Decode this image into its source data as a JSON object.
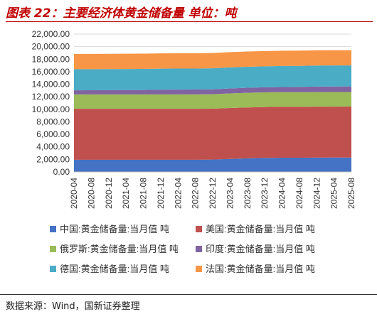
{
  "title": "图表 22：主要经济体黄金储备量 单位：吨",
  "source": "数据来源：Wind，国新证券整理",
  "chart_data": {
    "type": "area",
    "stacked": true,
    "ylim": [
      0,
      22000
    ],
    "yticks": [
      "0.00",
      "2,000.00",
      "4,000.00",
      "6,000.00",
      "8,000.00",
      "10,000.00",
      "12,000.00",
      "14,000.00",
      "16,000.00",
      "18,000.00",
      "20,000.00",
      "22,000.00"
    ],
    "xticks": [
      "2020-04",
      "2020-08",
      "2020-12",
      "2021-04",
      "2021-08",
      "2021-12",
      "2022-04",
      "2022-08",
      "2022-12",
      "2023-04",
      "2023-08",
      "2023-12",
      "2024-04",
      "2024-08",
      "2024-12",
      "2025-04",
      "2025-08"
    ],
    "grid": true,
    "legend_position": "bottom",
    "series": [
      {
        "name": "中国:黄金储备量:当月值 吨",
        "color": "#4472c4",
        "values": [
          1948,
          1948,
          1948,
          1948,
          1948,
          1948,
          1948,
          1948,
          1965,
          2068,
          2165,
          2235,
          2264,
          2264,
          2280,
          2292,
          2302
        ]
      },
      {
        "name": "美国:黄金储备量:当月值 吨",
        "color": "#c0504d",
        "values": [
          8133,
          8133,
          8133,
          8133,
          8133,
          8133,
          8133,
          8133,
          8133,
          8133,
          8133,
          8133,
          8133,
          8133,
          8133,
          8133,
          8133
        ]
      },
      {
        "name": "俄罗斯:黄金储备量:当月值 吨",
        "color": "#9bbb59",
        "values": [
          2299,
          2299,
          2299,
          2299,
          2299,
          2299,
          2299,
          2299,
          2299,
          2333,
          2333,
          2333,
          2336,
          2336,
          2336,
          2336,
          2330
        ]
      },
      {
        "name": "印度:黄金储备量:当月值 吨",
        "color": "#8064a2",
        "values": [
          653,
          662,
          676,
          695,
          705,
          743,
          760,
          768,
          787,
          794,
          801,
          803,
          823,
          840,
          876,
          879,
          880
        ]
      },
      {
        "name": "德国:黄金储备量:当月值 吨",
        "color": "#4bacc6",
        "values": [
          3362,
          3362,
          3362,
          3359,
          3359,
          3359,
          3358,
          3355,
          3355,
          3353,
          3352,
          3352,
          3351,
          3351,
          3351,
          3351,
          3350
        ]
      },
      {
        "name": "法国:黄金储备量:当月值 吨",
        "color": "#f79646",
        "values": [
          2436,
          2436,
          2436,
          2436,
          2436,
          2436,
          2436,
          2436,
          2436,
          2437,
          2437,
          2437,
          2437,
          2437,
          2437,
          2437,
          2437
        ]
      }
    ]
  }
}
